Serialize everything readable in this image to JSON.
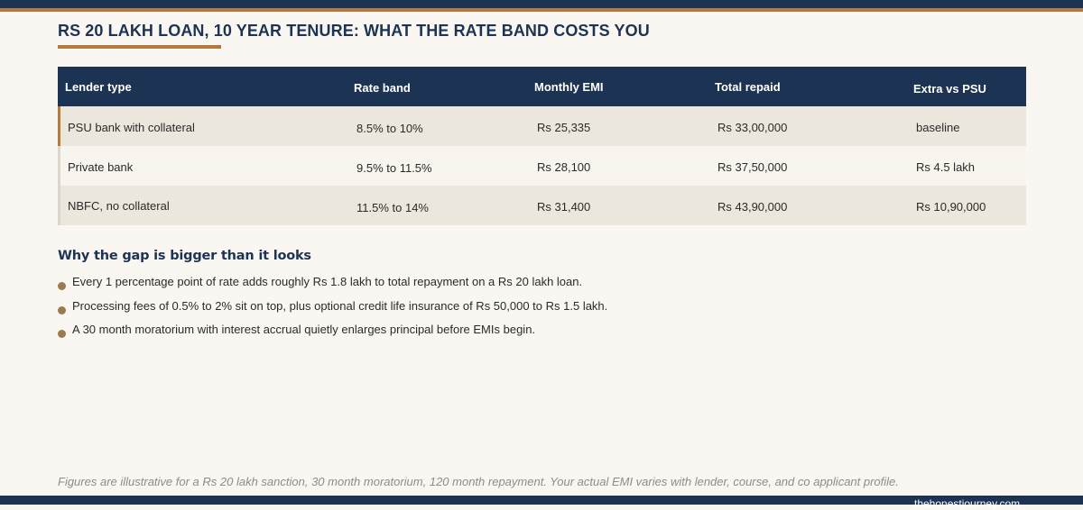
{
  "title": "RS 20 LAKH LOAN, 10 YEAR TENURE: WHAT THE RATE BAND COSTS YOU",
  "table": {
    "headers": [
      "Lender type",
      "Rate band",
      "Monthly EMI",
      "Total repaid",
      "Extra vs PSU"
    ],
    "rows": [
      [
        "PSU bank with collateral",
        "8.5% to 10%",
        "Rs 25,335",
        "Rs 33,00,000",
        "baseline"
      ],
      [
        "Private bank",
        "9.5% to 11.5%",
        "Rs 28,100",
        "Rs 37,50,000",
        "Rs 4.5 lakh"
      ],
      [
        "NBFC, no collateral",
        "11.5% to 14%",
        "Rs 31,400",
        "Rs 43,90,000",
        "Rs 10,90,000"
      ]
    ]
  },
  "section": {
    "heading": "Why the gap is bigger than it looks",
    "bullets": [
      "Every 1 percentage point of rate adds roughly Rs 1.8 lakh to total repayment on a Rs 20 lakh loan.",
      "Processing fees of 0.5% to 2% sit on top, plus optional credit life insurance of Rs 50,000 to Rs 1.5 lakh.",
      "A 30 month moratorium with interest accrual quietly enlarges principal before EMIs begin."
    ]
  },
  "footnote": "Figures are illustrative for a Rs 20 lakh sanction, 30 month moratorium, 120 month repayment. Your actual EMI varies with lender, course, and co applicant profile.",
  "credit": "thehonestjourney.com",
  "colors": {
    "navy": "#1d3354",
    "accent": "#b37a3e",
    "background": "#faf7f2"
  }
}
